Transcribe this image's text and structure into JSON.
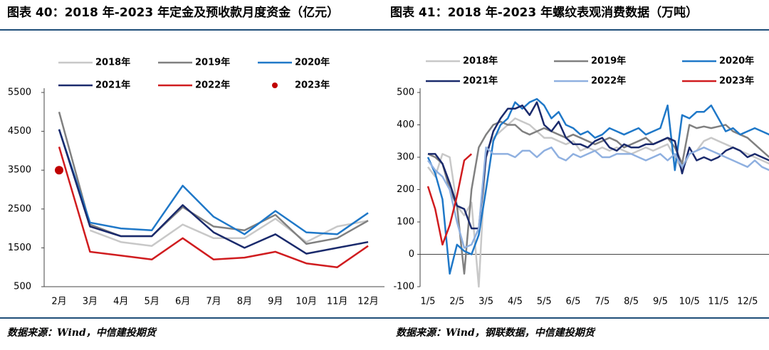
{
  "chart_data": [
    {
      "type": "line",
      "title": "图表 40：2018 年-2023 年定金及预收款月度资金（亿元）",
      "source": "数据来源：Wind，中信建投期货",
      "categories": [
        "2月",
        "3月",
        "4月",
        "5月",
        "6月",
        "7月",
        "8月",
        "9月",
        "10月",
        "11月",
        "12月"
      ],
      "ylim": [
        500,
        5500
      ],
      "yticks": [
        500,
        1500,
        2500,
        3500,
        4500,
        5500
      ],
      "series": [
        {
          "name": "2018年",
          "color": "#c8c8c8",
          "values": [
            null,
            1950,
            1650,
            1550,
            2100,
            1750,
            1750,
            2250,
            1650,
            2050,
            2200
          ]
        },
        {
          "name": "2019年",
          "color": "#808080",
          "values": [
            5000,
            2100,
            1800,
            1800,
            2550,
            2050,
            1950,
            2350,
            1600,
            1750,
            2200
          ]
        },
        {
          "name": "2020年",
          "color": "#1f78c8",
          "values": [
            4550,
            2150,
            2000,
            1950,
            3100,
            2300,
            1850,
            2450,
            1900,
            1850,
            2400
          ]
        },
        {
          "name": "2021年",
          "color": "#1a2a6c",
          "values": [
            4550,
            2050,
            1800,
            1800,
            2600,
            1900,
            1500,
            1850,
            1350,
            1500,
            1650
          ]
        },
        {
          "name": "2022年",
          "color": "#d01c1f",
          "values": [
            4100,
            1400,
            1300,
            1200,
            1750,
            1200,
            1250,
            1400,
            1100,
            1000,
            1550
          ]
        },
        {
          "name": "2023年",
          "color": "#c00000",
          "mode": "markers",
          "values": [
            3500,
            null,
            null,
            null,
            null,
            null,
            null,
            null,
            null,
            null,
            null
          ]
        }
      ]
    },
    {
      "type": "line",
      "title": "图表 41：2018 年-2023 年螺纹表观消费数据（万吨）",
      "source": "数据来源：Wind，钢联数据，中信建投期货",
      "categories": [
        "1/5",
        null,
        null,
        null,
        "2/5",
        null,
        null,
        null,
        "3/5",
        null,
        null,
        null,
        "4/5",
        null,
        null,
        null,
        "5/5",
        null,
        null,
        null,
        "6/5",
        null,
        null,
        null,
        "7/5",
        null,
        null,
        null,
        "8/5",
        null,
        null,
        null,
        "9/5",
        null,
        null,
        null,
        "10/5",
        null,
        null,
        null,
        "11/5",
        null,
        null,
        null,
        "12/5",
        null,
        null,
        null
      ],
      "ylim": [
        -100,
        500
      ],
      "yticks": [
        -100,
        0,
        100,
        200,
        300,
        400,
        500
      ],
      "series": [
        {
          "name": "2018年",
          "color": "#c8c8c8",
          "values": [
            270,
            240,
            310,
            300,
            150,
            120,
            160,
            -100,
            320,
            360,
            380,
            400,
            420,
            410,
            400,
            380,
            360,
            360,
            350,
            340,
            350,
            320,
            330,
            320,
            330,
            320,
            330,
            320,
            310,
            320,
            330,
            320,
            330,
            340,
            300,
            260,
            310,
            320,
            350,
            360,
            350,
            340,
            330,
            320,
            310,
            300,
            290,
            280
          ]
        },
        {
          "name": "2019年",
          "color": "#808080",
          "values": [
            310,
            300,
            280,
            200,
            150,
            -60,
            200,
            330,
            370,
            400,
            410,
            400,
            400,
            380,
            370,
            380,
            390,
            380,
            370,
            360,
            370,
            360,
            350,
            340,
            350,
            360,
            350,
            330,
            340,
            350,
            360,
            340,
            350,
            360,
            330,
            280,
            400,
            390,
            395,
            390,
            395,
            400,
            380,
            370,
            360,
            340,
            320,
            300
          ]
        },
        {
          "name": "2020年",
          "color": "#1f78c8",
          "values": [
            300,
            250,
            170,
            -60,
            30,
            10,
            0,
            60,
            200,
            350,
            400,
            420,
            470,
            450,
            470,
            480,
            460,
            420,
            440,
            400,
            390,
            370,
            380,
            360,
            370,
            390,
            380,
            370,
            380,
            390,
            370,
            380,
            390,
            460,
            260,
            430,
            420,
            440,
            440,
            460,
            420,
            380,
            390,
            370,
            380,
            390,
            380,
            370
          ]
        },
        {
          "name": "2021年",
          "color": "#1a2a6c",
          "values": [
            310,
            310,
            280,
            220,
            150,
            140,
            80,
            80,
            300,
            380,
            420,
            450,
            450,
            460,
            430,
            470,
            400,
            380,
            410,
            360,
            340,
            340,
            330,
            350,
            360,
            330,
            320,
            340,
            330,
            330,
            340,
            340,
            350,
            360,
            350,
            250,
            330,
            290,
            300,
            290,
            300,
            320,
            330,
            320,
            300,
            310,
            300,
            290
          ]
        },
        {
          "name": "2022年",
          "color": "#8fb0e0",
          "values": [
            290,
            260,
            240,
            200,
            100,
            20,
            30,
            80,
            330,
            310,
            310,
            310,
            300,
            320,
            320,
            300,
            320,
            330,
            300,
            290,
            310,
            300,
            310,
            320,
            300,
            300,
            310,
            310,
            310,
            300,
            290,
            300,
            310,
            290,
            310,
            270,
            310,
            320,
            330,
            320,
            310,
            300,
            290,
            280,
            270,
            290,
            270,
            260
          ]
        },
        {
          "name": "2023年",
          "color": "#d01c1f",
          "values": [
            210,
            140,
            30,
            90,
            180,
            290,
            310,
            null,
            null,
            null,
            null,
            null,
            null,
            null,
            null,
            null,
            null,
            null,
            null,
            null,
            null,
            null,
            null,
            null,
            null,
            null,
            null,
            null,
            null,
            null,
            null,
            null,
            null,
            null,
            null,
            null,
            null,
            null,
            null,
            null,
            null,
            null,
            null,
            null,
            null,
            null,
            null,
            null
          ]
        }
      ]
    }
  ]
}
